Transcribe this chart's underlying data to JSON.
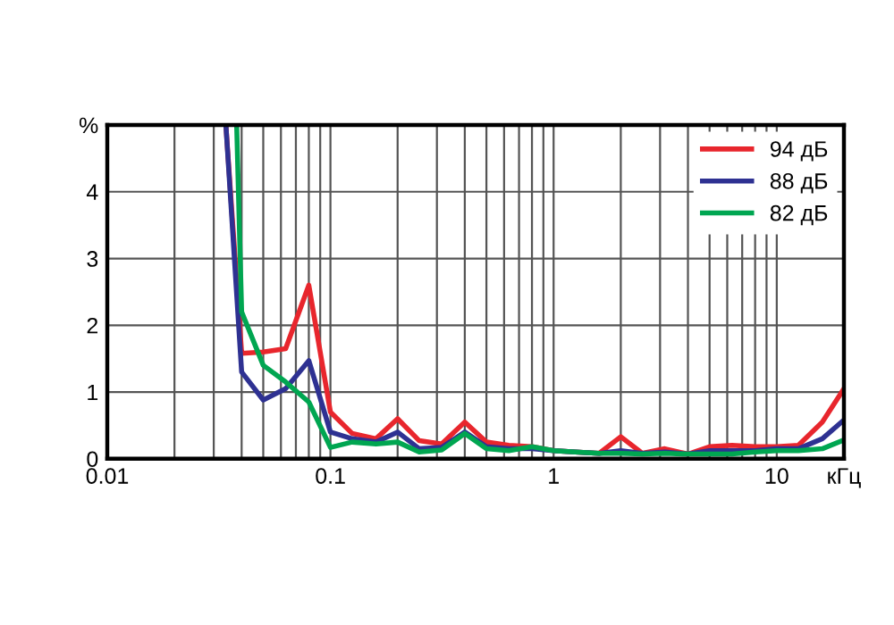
{
  "chart_data": {
    "type": "line",
    "log": "x",
    "grid": true,
    "legend": "top right",
    "marker": "none",
    "line_style": "solid",
    "xlim": [
      0.01,
      20
    ],
    "ylim": [
      0,
      5
    ],
    "xticks": [
      0.01,
      0.1,
      1,
      10,
      {
        "value": 20,
        "label": "кГц"
      }
    ],
    "yticks": [
      0,
      1,
      2,
      3,
      4,
      {
        "value": 5,
        "label": "%"
      }
    ],
    "series": [
      {
        "name": "94 дБ",
        "color": "#e8262d",
        "x": [
          0.034,
          0.04,
          0.05,
          0.063,
          0.08,
          0.1,
          0.125,
          0.16,
          0.2,
          0.25,
          0.315,
          0.4,
          0.5,
          0.63,
          0.8,
          1,
          1.25,
          1.6,
          2,
          2.5,
          3.15,
          4,
          5,
          6.3,
          8,
          10,
          12.5,
          16,
          20
        ],
        "values": [
          5,
          1.58,
          1.6,
          1.65,
          2.6,
          0.7,
          0.38,
          0.3,
          0.6,
          0.27,
          0.22,
          0.55,
          0.25,
          0.2,
          0.18,
          0.12,
          0.1,
          0.08,
          0.33,
          0.08,
          0.15,
          0.07,
          0.18,
          0.2,
          0.18,
          0.18,
          0.2,
          0.55,
          1.05
        ]
      },
      {
        "name": "88 дБ",
        "color": "#2e3192",
        "x": [
          0.034,
          0.04,
          0.05,
          0.063,
          0.08,
          0.1,
          0.125,
          0.16,
          0.2,
          0.25,
          0.315,
          0.4,
          0.5,
          0.63,
          0.8,
          1,
          1.25,
          1.6,
          2,
          2.5,
          3.15,
          4,
          5,
          6.3,
          8,
          10,
          12.5,
          16,
          20
        ],
        "values": [
          5,
          1.3,
          0.88,
          1.05,
          1.47,
          0.4,
          0.3,
          0.25,
          0.4,
          0.15,
          0.17,
          0.4,
          0.18,
          0.15,
          0.15,
          0.12,
          0.1,
          0.08,
          0.12,
          0.08,
          0.1,
          0.07,
          0.12,
          0.12,
          0.12,
          0.15,
          0.15,
          0.3,
          0.58
        ]
      },
      {
        "name": "82 дБ",
        "color": "#00a651",
        "x": [
          0.038,
          0.04,
          0.05,
          0.063,
          0.08,
          0.1,
          0.125,
          0.16,
          0.2,
          0.25,
          0.315,
          0.4,
          0.5,
          0.63,
          0.8,
          1,
          1.25,
          1.6,
          2,
          2.5,
          3.15,
          4,
          5,
          6.3,
          8,
          10,
          12.5,
          16,
          20
        ],
        "values": [
          5,
          2.2,
          1.4,
          1.15,
          0.85,
          0.17,
          0.25,
          0.22,
          0.25,
          0.1,
          0.13,
          0.38,
          0.15,
          0.12,
          0.18,
          0.12,
          0.1,
          0.08,
          0.08,
          0.07,
          0.08,
          0.07,
          0.07,
          0.07,
          0.1,
          0.12,
          0.12,
          0.15,
          0.28
        ]
      }
    ]
  }
}
